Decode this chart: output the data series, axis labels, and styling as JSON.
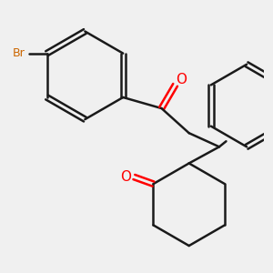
{
  "background_color": "#f0f0f0",
  "bond_color": "#1a1a1a",
  "o_color": "#ff0000",
  "br_color": "#cc6600",
  "label_O1": "O",
  "label_O2": "O",
  "label_Br": "Br",
  "figsize": [
    3.0,
    3.0
  ],
  "dpi": 100
}
